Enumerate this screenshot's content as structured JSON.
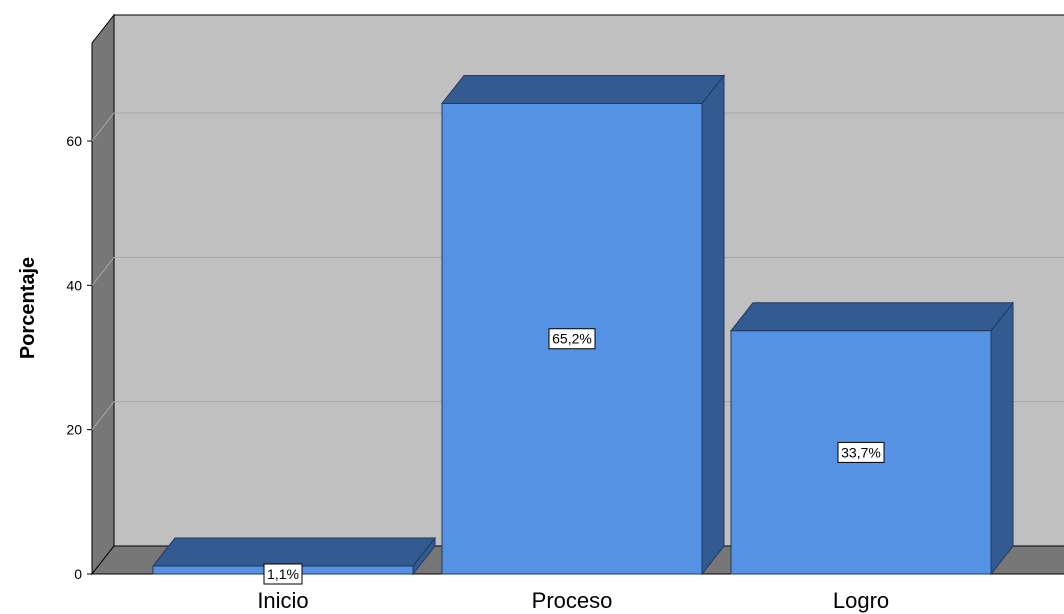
{
  "chart_data": {
    "type": "bar",
    "categories": [
      "Inicio",
      "Proceso",
      "Logro"
    ],
    "values": [
      1.1,
      65.2,
      33.7
    ],
    "data_labels": [
      "1,1%",
      "65,2%",
      "33,7%"
    ],
    "ylabel": "Porcentaje",
    "xlabel": "",
    "ylim": [
      0,
      75
    ],
    "yticks": [
      0,
      20,
      40,
      60
    ],
    "ytick_labels": [
      "0",
      "20",
      "40",
      "60"
    ],
    "grid": true,
    "style": "3d",
    "colors": {
      "bar_front": "#5592e3",
      "bar_top": "#335b91",
      "bar_side": "#335b91",
      "back_wall": "#c0c0c0",
      "side_wall": "#777777",
      "floor": "#777777",
      "gridline": "#a8a8a8"
    }
  }
}
